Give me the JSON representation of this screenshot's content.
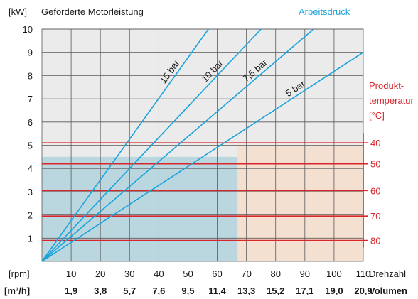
{
  "chart_data": {
    "type": "line",
    "title": "Geforderte Motorleistung",
    "y_unit": "[kW]",
    "ylim": [
      0,
      10
    ],
    "y_ticks": [
      "1",
      "2",
      "3",
      "4",
      "5",
      "6",
      "7",
      "8",
      "9",
      "10"
    ],
    "x_unit": "[rpm]",
    "xlim": [
      0,
      110
    ],
    "x_ticks": [
      10,
      20,
      30,
      40,
      50,
      60,
      70,
      80,
      90,
      100,
      110
    ],
    "x_tick_labels": [
      "10",
      "20",
      "30",
      "40",
      "50",
      "60",
      "70",
      "80",
      "90",
      "100",
      "110"
    ],
    "xlabel": "Drehzahl",
    "x2_unit": "[m³/h]",
    "x2_tick_labels": [
      "1,9",
      "3,8",
      "5,7",
      "7,6",
      "9,5",
      "11,4",
      "13,3",
      "15,2",
      "17,1",
      "19,0",
      "20,9"
    ],
    "x2label": "Volumen",
    "legend_title": "Arbeitsdruck",
    "grid": true,
    "series": [
      {
        "name": "15 bar",
        "x": [
          0,
          57
        ],
        "y": [
          0,
          10
        ]
      },
      {
        "name": "10 bar",
        "x": [
          0,
          75
        ],
        "y": [
          0,
          10
        ]
      },
      {
        "name": "7,5 bar",
        "x": [
          0,
          93
        ],
        "y": [
          0,
          10
        ]
      },
      {
        "name": "5 bar",
        "x": [
          0,
          110
        ],
        "y": [
          0,
          9
        ]
      }
    ],
    "temperature_axis": {
      "title_line1": "Produkt-",
      "title_line2": "temperatur",
      "unit": "[°C]",
      "levels": [
        {
          "label": "40",
          "kw": 5.1
        },
        {
          "label": "50",
          "kw": 4.2
        },
        {
          "label": "60",
          "kw": 3.05
        },
        {
          "label": "70",
          "kw": 1.95
        },
        {
          "label": "80",
          "kw": 0.9
        }
      ]
    },
    "regions": [
      {
        "name": "blue-region",
        "x": [
          0,
          67
        ],
        "y": [
          0,
          4.5
        ],
        "color": "#b5d5df"
      },
      {
        "name": "peach-region",
        "x": [
          67,
          110
        ],
        "y": [
          0,
          5
        ],
        "color": "#f4dfcd"
      }
    ],
    "colors": {
      "line": "#1aa3dc",
      "temperature": "#d9262b",
      "plot_bg": "#ebebeb",
      "grid": "#5a5a5a"
    }
  }
}
